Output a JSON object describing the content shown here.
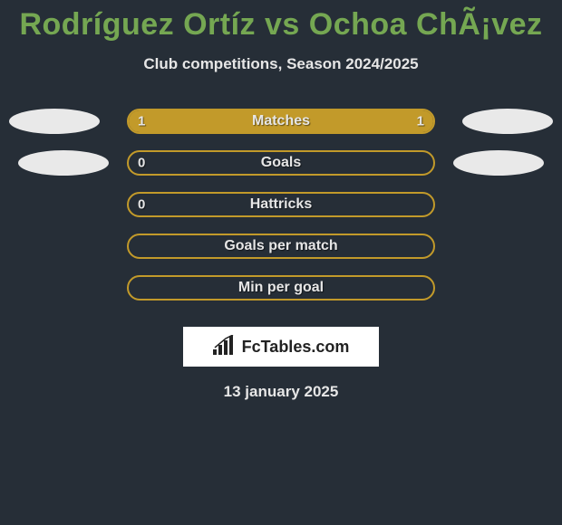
{
  "title": "Rodríguez Ortíz vs Ochoa ChÃ¡vez",
  "subtitle": "Club competitions, Season 2024/2025",
  "date": "13 january 2025",
  "logo": "FcTables.com",
  "colors": {
    "background": "#262e37",
    "accent_green": "#75a752",
    "bar_border": "#c29a2a",
    "bar_fill": "#c29a2a",
    "text_light": "#e6e6e6",
    "avatar_bg": "#e9e9e9",
    "logo_bg": "#ffffff"
  },
  "bars": [
    {
      "label": "Matches",
      "left_val": "1",
      "right_val": "1",
      "left_fill_pct": 50,
      "right_fill_pct": 50,
      "show_left_avatar": true,
      "show_right_avatar": true,
      "avatar_shift": false
    },
    {
      "label": "Goals",
      "left_val": "0",
      "right_val": "",
      "left_fill_pct": 0,
      "right_fill_pct": 0,
      "show_left_avatar": true,
      "show_right_avatar": true,
      "avatar_shift": true
    },
    {
      "label": "Hattricks",
      "left_val": "0",
      "right_val": "",
      "left_fill_pct": 0,
      "right_fill_pct": 0,
      "show_left_avatar": false,
      "show_right_avatar": false,
      "avatar_shift": false
    },
    {
      "label": "Goals per match",
      "left_val": "",
      "right_val": "",
      "left_fill_pct": 0,
      "right_fill_pct": 0,
      "show_left_avatar": false,
      "show_right_avatar": false,
      "avatar_shift": false
    },
    {
      "label": "Min per goal",
      "left_val": "",
      "right_val": "",
      "left_fill_pct": 0,
      "right_fill_pct": 0,
      "show_left_avatar": false,
      "show_right_avatar": false,
      "avatar_shift": false
    }
  ]
}
